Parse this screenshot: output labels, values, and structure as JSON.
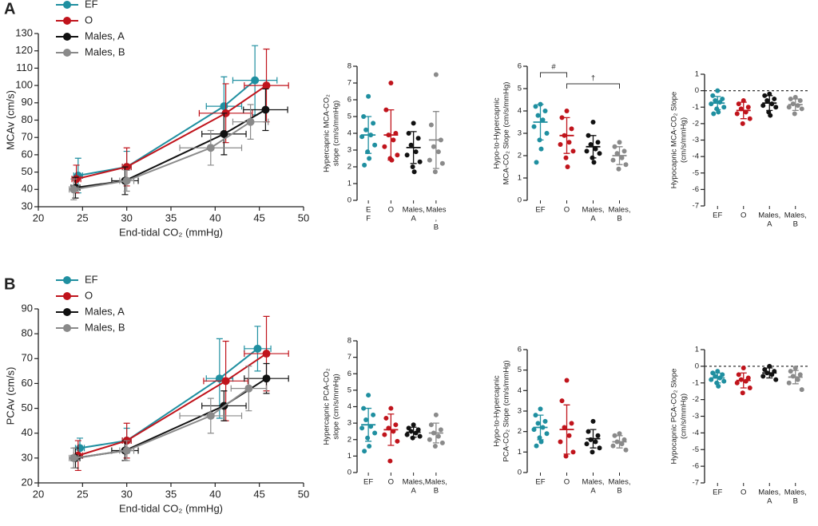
{
  "chart_data": [
    {
      "type": "line",
      "panel": "A",
      "ylabel": "MCAv (cm/s)",
      "xlabel": "End-tidal CO₂ (mmHg)",
      "xlim": [
        20,
        50
      ],
      "xticks": [
        20,
        25,
        30,
        35,
        40,
        45,
        50
      ],
      "ylim": [
        30,
        130
      ],
      "yticks": [
        30,
        40,
        50,
        60,
        70,
        80,
        90,
        100,
        110,
        120,
        130
      ],
      "legend": "upper left",
      "series": [
        {
          "name": "EF",
          "color": "#1f8fa0",
          "x": [
            24.5,
            30,
            41,
            44.5
          ],
          "values": [
            48,
            53,
            88,
            103
          ],
          "xerr": [
            0.5,
            0.5,
            2,
            2.5
          ],
          "yerr": [
            10,
            9,
            17,
            20
          ]
        },
        {
          "name": "O",
          "color": "#c0141c",
          "x": [
            24.3,
            30,
            41.2,
            45.8
          ],
          "values": [
            46,
            53,
            84,
            100
          ],
          "xerr": [
            0.5,
            0.5,
            3,
            2.5
          ],
          "yerr": [
            8,
            11,
            17,
            21
          ]
        },
        {
          "name": "Males, A",
          "color": "#111111",
          "x": [
            24.2,
            29.8,
            41,
            45.7
          ],
          "values": [
            41,
            45,
            72,
            86
          ],
          "xerr": [
            0.5,
            1.5,
            2.5,
            2.5
          ],
          "yerr": [
            6,
            8,
            12,
            12
          ]
        },
        {
          "name": "Males, B",
          "color": "#8a8a8a",
          "x": [
            24,
            30,
            39.5,
            44
          ],
          "values": [
            40,
            45,
            64,
            79
          ],
          "xerr": [
            0.5,
            0.8,
            3.5,
            2
          ],
          "yerr": [
            6,
            6,
            10,
            10
          ]
        }
      ]
    },
    {
      "type": "dot",
      "ylabel": [
        "Hypercapnic MCA-CO₂",
        "slope (cm/s/mmHg)"
      ],
      "ylim": [
        0,
        8
      ],
      "yticks": [
        0,
        1,
        2,
        3,
        4,
        5,
        6,
        7,
        8
      ],
      "groups": [
        {
          "label": [
            "E",
            "F"
          ],
          "color": "#1f8fa0",
          "values": [
            6.2,
            5.0,
            4.6,
            4.2,
            3.9,
            3.8,
            3.3,
            2.9,
            2.5,
            2.1
          ],
          "mean": 3.9,
          "sd": 1.1
        },
        {
          "label": [
            "O"
          ],
          "color": "#c0141c",
          "values": [
            7.0,
            5.4,
            4.0,
            3.9,
            3.6,
            3.2,
            2.7,
            2.5,
            2.4
          ],
          "mean": 3.9,
          "sd": 1.5
        },
        {
          "label": [
            "Males,",
            "A"
          ],
          "color": "#111111",
          "values": [
            4.6,
            4.0,
            3.7,
            3.3,
            2.9,
            2.7,
            2.3,
            2.0,
            1.7
          ],
          "mean": 3.15,
          "sd": 0.95
        },
        {
          "label": [
            "Males",
            ",",
            "B"
          ],
          "color": "#8a8a8a",
          "values": [
            7.5,
            4.5,
            3.6,
            3.2,
            2.9,
            2.4,
            2.2,
            1.7
          ],
          "mean": 3.6,
          "sd": 1.7
        }
      ]
    },
    {
      "type": "dot",
      "ylabel": [
        "Hypo-to-Hypercapnic",
        "MCA-CO₂ Slope (cm/s/mmHg)"
      ],
      "ylim": [
        0,
        6
      ],
      "yticks": [
        0,
        1,
        2,
        3,
        4,
        5,
        6
      ],
      "annotations": [
        {
          "text": "#",
          "between": [
            "EF",
            "O"
          ]
        },
        {
          "text": "†",
          "between": [
            "O",
            "Males, B"
          ]
        }
      ],
      "groups": [
        {
          "label": [
            "EF"
          ],
          "color": "#1f8fa0",
          "values": [
            4.3,
            4.2,
            4.0,
            3.8,
            3.6,
            3.3,
            3.0,
            2.7,
            2.3,
            1.7
          ],
          "mean": 3.5,
          "sd": 0.8
        },
        {
          "label": [
            "O"
          ],
          "color": "#c0141c",
          "values": [
            4.0,
            3.7,
            3.2,
            2.9,
            2.6,
            2.5,
            2.2,
            1.9,
            1.5
          ],
          "mean": 2.9,
          "sd": 0.8
        },
        {
          "label": [
            "Males,",
            "A"
          ],
          "color": "#111111",
          "values": [
            3.5,
            2.9,
            2.6,
            2.5,
            2.3,
            2.2,
            2.1,
            1.9,
            1.7
          ],
          "mean": 2.4,
          "sd": 0.5
        },
        {
          "label": [
            "Males,",
            "B"
          ],
          "color": "#8a8a8a",
          "values": [
            2.6,
            2.4,
            2.2,
            2.1,
            1.9,
            1.8,
            1.6,
            1.4
          ],
          "mean": 2.0,
          "sd": 0.4
        }
      ]
    },
    {
      "type": "dot",
      "ylabel": [
        "Hypocapnic MCA-CO₂ Slope",
        "(cm/s/mmHg)"
      ],
      "ylim": [
        -7,
        1
      ],
      "yticks": [
        -7,
        -6,
        -5,
        -4,
        -3,
        -2,
        -1,
        0,
        1
      ],
      "ref_line": 0,
      "groups": [
        {
          "label": [
            "EF"
          ],
          "color": "#1f8fa0",
          "values": [
            0,
            -0.3,
            -0.5,
            -0.6,
            -0.7,
            -0.8,
            -1.0,
            -1.1,
            -1.3,
            -1.4
          ],
          "mean": -0.75,
          "sd": 0.4
        },
        {
          "label": [
            "O"
          ],
          "color": "#c0141c",
          "values": [
            -0.6,
            -0.8,
            -1.0,
            -1.1,
            -1.3,
            -1.4,
            -1.7,
            -2.0
          ],
          "mean": -1.2,
          "sd": 0.5
        },
        {
          "label": [
            "Males,",
            "A"
          ],
          "color": "#111111",
          "values": [
            -0.2,
            -0.3,
            -0.5,
            -0.6,
            -0.8,
            -0.9,
            -1.0,
            -1.3,
            -1.5
          ],
          "mean": -0.75,
          "sd": 0.45
        },
        {
          "label": [
            "Males,",
            "B"
          ],
          "color": "#8a8a8a",
          "values": [
            -0.4,
            -0.5,
            -0.6,
            -0.8,
            -0.9,
            -1.0,
            -1.1,
            -1.4
          ],
          "mean": -0.85,
          "sd": 0.35
        }
      ]
    },
    {
      "type": "line",
      "panel": "B",
      "ylabel": "PCAv (cm/s)",
      "xlabel": "End-tidal CO₂ (mmHg)",
      "xlim": [
        20,
        50
      ],
      "xticks": [
        20,
        25,
        30,
        35,
        40,
        45,
        50
      ],
      "ylim": [
        20,
        90
      ],
      "yticks": [
        20,
        30,
        40,
        50,
        60,
        70,
        80,
        90
      ],
      "legend": "upper left",
      "series": [
        {
          "name": "EF",
          "color": "#1f8fa0",
          "x": [
            24.7,
            30,
            40.5,
            44.8
          ],
          "values": [
            34,
            37,
            62,
            74
          ],
          "xerr": [
            0.5,
            0.5,
            1.5,
            1.5
          ],
          "yerr": [
            4,
            5,
            16,
            9
          ]
        },
        {
          "name": "O",
          "color": "#c0141c",
          "x": [
            24.5,
            30,
            41.2,
            45.8
          ],
          "values": [
            31,
            37,
            61,
            72
          ],
          "xerr": [
            0.5,
            0.5,
            2.5,
            2.5
          ],
          "yerr": [
            6,
            7,
            16,
            15
          ]
        },
        {
          "name": "Males, A",
          "color": "#111111",
          "x": [
            24.2,
            29.8,
            41,
            45.8
          ],
          "values": [
            30,
            33,
            51,
            62
          ],
          "xerr": [
            0.5,
            1.5,
            2.5,
            2.5
          ],
          "yerr": [
            4,
            4,
            6,
            6
          ]
        },
        {
          "name": "Males, B",
          "color": "#8a8a8a",
          "x": [
            24,
            30,
            39.5,
            43.8
          ],
          "values": [
            30,
            33,
            47,
            58
          ],
          "xerr": [
            0.5,
            0.8,
            3.5,
            2
          ],
          "yerr": [
            4,
            4,
            7,
            9
          ]
        }
      ]
    },
    {
      "type": "dot",
      "ylabel": [
        "Hypercapnic PCA-CO₂",
        "slope (cm/s/mmHg)"
      ],
      "ylim": [
        0,
        8
      ],
      "yticks": [
        0,
        1,
        2,
        3,
        4,
        5,
        6,
        7,
        8
      ],
      "groups": [
        {
          "label": [
            "EF"
          ],
          "color": "#1f8fa0",
          "values": [
            4.7,
            3.9,
            3.5,
            3.2,
            2.8,
            2.7,
            2.4,
            2.1,
            1.6,
            1.3
          ],
          "mean": 2.9,
          "sd": 1.0
        },
        {
          "label": [
            "O"
          ],
          "color": "#c0141c",
          "values": [
            3.9,
            3.3,
            2.9,
            2.7,
            2.5,
            2.3,
            1.9,
            0.7
          ],
          "mean": 2.6,
          "sd": 0.95
        },
        {
          "label": [
            "Males,",
            "A"
          ],
          "color": "#111111",
          "values": [
            2.9,
            2.7,
            2.6,
            2.5,
            2.4,
            2.3,
            2.2,
            2.1
          ],
          "mean": 2.45,
          "sd": 0.3
        },
        {
          "label": [
            "Males,",
            "B"
          ],
          "color": "#8a8a8a",
          "values": [
            3.5,
            2.9,
            2.6,
            2.4,
            2.2,
            2.0,
            1.8,
            1.6
          ],
          "mean": 2.4,
          "sd": 0.6
        }
      ]
    },
    {
      "type": "dot",
      "ylabel": [
        "Hypo-to-Hypercapnic",
        "PCA-CO₂ Slope (cm/s/mmHg)"
      ],
      "ylim": [
        0,
        6
      ],
      "yticks": [
        0,
        1,
        2,
        3,
        4,
        5,
        6
      ],
      "groups": [
        {
          "label": [
            "EF"
          ],
          "color": "#1f8fa0",
          "values": [
            3.1,
            2.8,
            2.5,
            2.4,
            2.2,
            2.1,
            1.9,
            1.7,
            1.5,
            1.3
          ],
          "mean": 2.2,
          "sd": 0.6
        },
        {
          "label": [
            "O"
          ],
          "color": "#c0141c",
          "values": [
            4.5,
            3.5,
            2.4,
            2.2,
            1.8,
            1.5,
            1.0,
            0.8
          ],
          "mean": 2.1,
          "sd": 1.2
        },
        {
          "label": [
            "Males,",
            "A"
          ],
          "color": "#111111",
          "values": [
            2.5,
            2.0,
            1.8,
            1.6,
            1.5,
            1.4,
            1.2,
            1.0
          ],
          "mean": 1.65,
          "sd": 0.45
        },
        {
          "label": [
            "Males,",
            "B"
          ],
          "color": "#8a8a8a",
          "values": [
            1.9,
            1.8,
            1.6,
            1.5,
            1.4,
            1.3,
            1.1
          ],
          "mean": 1.5,
          "sd": 0.3
        }
      ]
    },
    {
      "type": "dot",
      "ylabel": [
        "Hypocapnic PCA-CO₂ Slope",
        "(cm/s/mmHg)"
      ],
      "ylim": [
        -7,
        1
      ],
      "yticks": [
        -7,
        -6,
        -5,
        -4,
        -3,
        -2,
        -1,
        0,
        1
      ],
      "ref_line": 0,
      "groups": [
        {
          "label": [
            "EF"
          ],
          "color": "#1f8fa0",
          "values": [
            -0.3,
            -0.4,
            -0.5,
            -0.6,
            -0.7,
            -0.8,
            -0.9,
            -1.0,
            -1.2
          ],
          "mean": -0.7,
          "sd": 0.3
        },
        {
          "label": [
            "O"
          ],
          "color": "#c0141c",
          "values": [
            -0.1,
            -0.5,
            -0.7,
            -0.8,
            -0.9,
            -1.0,
            -1.3,
            -1.6
          ],
          "mean": -0.85,
          "sd": 0.45
        },
        {
          "label": [
            "Males,",
            "A"
          ],
          "color": "#111111",
          "values": [
            0,
            -0.2,
            -0.3,
            -0.4,
            -0.5,
            -0.6,
            -0.8
          ],
          "mean": -0.4,
          "sd": 0.3
        },
        {
          "label": [
            "Males,",
            "B"
          ],
          "color": "#8a8a8a",
          "values": [
            -0.1,
            -0.3,
            -0.5,
            -0.6,
            -0.8,
            -1.0,
            -1.4
          ],
          "mean": -0.65,
          "sd": 0.4
        }
      ]
    }
  ]
}
